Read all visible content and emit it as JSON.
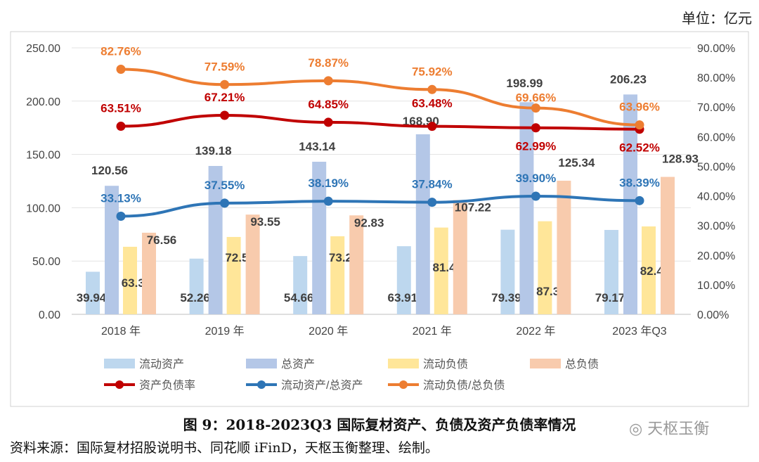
{
  "unit_label": "单位：亿元",
  "caption": "图 9：2018-2023Q3 国际复材资产、负债及资产负债率情况",
  "source": "资料来源：国际复材招股说明书、同花顺 iFinD，天枢玉衡整理、绘制。",
  "watermark": "天枢玉衡",
  "chart_data": {
    "type": "bar+line",
    "categories": [
      "2018 年",
      "2019 年",
      "2020 年",
      "2021 年",
      "2022 年",
      "2023 年Q3"
    ],
    "left_axis": {
      "min": 0,
      "max": 250,
      "step": 50,
      "ticks": [
        "0.00",
        "50.00",
        "100.00",
        "150.00",
        "200.00",
        "250.00"
      ]
    },
    "right_axis": {
      "min": 0,
      "max": 90,
      "step": 10,
      "ticks": [
        "0.00%",
        "10.00%",
        "20.00%",
        "30.00%",
        "40.00%",
        "50.00%",
        "60.00%",
        "70.00%",
        "80.00%",
        "90.00%"
      ]
    },
    "grid": true,
    "legend_position": "bottom",
    "bar_series": [
      {
        "name": "流动资产",
        "color": "#bdd7ee",
        "values": [
          39.94,
          52.26,
          54.66,
          63.91,
          79.39,
          79.17
        ],
        "labels": [
          "39.94",
          "52.26",
          "54.66",
          "63.91",
          "79.39",
          "79.17"
        ]
      },
      {
        "name": "总资产",
        "color": "#b4c7e7",
        "values": [
          120.56,
          139.18,
          143.14,
          168.9,
          198.99,
          206.23
        ],
        "labels": [
          "120.56",
          "139.18",
          "143.14",
          "168.90",
          "198.99",
          "206.23"
        ]
      },
      {
        "name": "流动负债",
        "color": "#ffe699",
        "values": [
          63.37,
          72.58,
          73.21,
          81.4,
          87.32,
          82.46
        ],
        "labels": [
          "63.37",
          "72.58",
          "73.21",
          "81.40",
          "87.32",
          "82.46"
        ]
      },
      {
        "name": "总负债",
        "color": "#f8cbad",
        "values": [
          76.56,
          93.55,
          92.83,
          107.22,
          125.34,
          128.93
        ],
        "labels": [
          "76.56",
          "93.55",
          "92.83",
          "107.22",
          "125.34",
          "128.93"
        ]
      }
    ],
    "line_series": [
      {
        "name": "资产负债率",
        "color": "#c00000",
        "values": [
          63.51,
          67.21,
          64.85,
          63.48,
          62.99,
          62.52
        ],
        "labels": [
          "63.51%",
          "67.21%",
          "64.85%",
          "63.48%",
          "62.99%",
          "62.52%"
        ]
      },
      {
        "name": "流动资产/总资产",
        "color": "#2e75b6",
        "values": [
          33.13,
          37.55,
          38.19,
          37.84,
          39.9,
          38.39
        ],
        "labels": [
          "33.13%",
          "37.55%",
          "38.19%",
          "37.84%",
          "39.90%",
          "38.39%"
        ]
      },
      {
        "name": "流动负债/总负债",
        "color": "#ed7d31",
        "values": [
          82.76,
          77.59,
          78.87,
          75.92,
          69.66,
          63.96
        ],
        "labels": [
          "82.76%",
          "77.59%",
          "78.87%",
          "75.92%",
          "69.66%",
          "63.96%"
        ]
      }
    ]
  }
}
